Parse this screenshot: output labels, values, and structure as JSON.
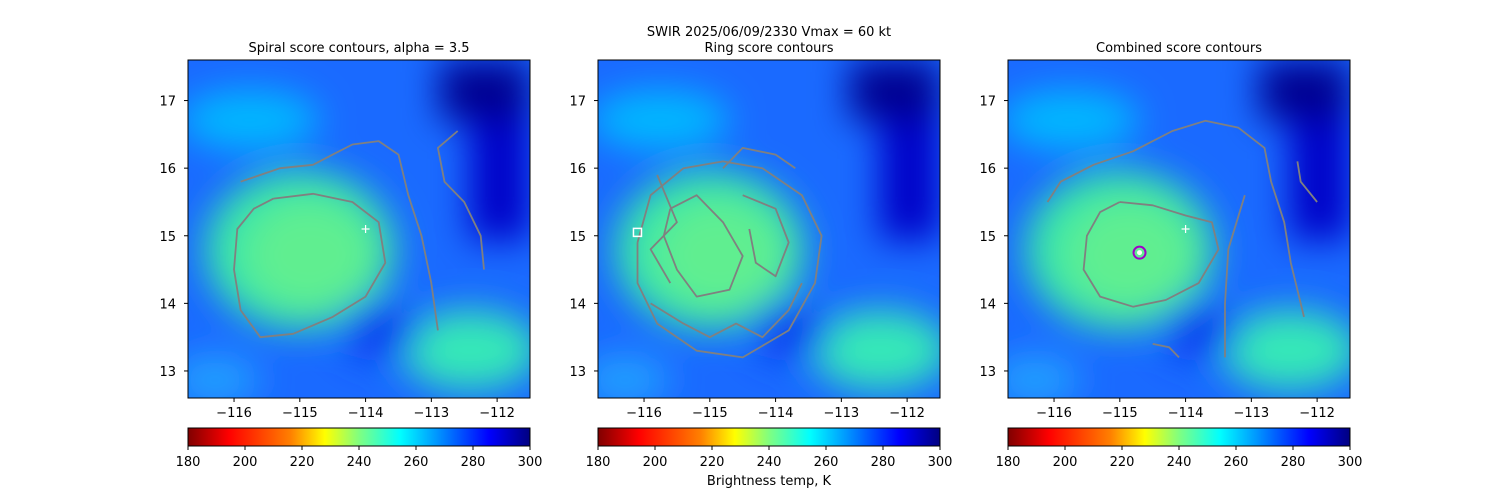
{
  "figure": {
    "suptitle_line1": "SWIR  2025/06/09/2330    Vmax = 60 kt",
    "colorbar_label": "Brightness temp, K",
    "colormap": [
      "#800000",
      "#ff0000",
      "#ff8000",
      "#ffff00",
      "#80ff80",
      "#00ffff",
      "#0080ff",
      "#0000ff",
      "#000080"
    ],
    "contour_color": "#808080",
    "marker_color": "#ffffff",
    "center_marker_color": "#a000c8"
  },
  "chart_data": [
    {
      "type": "heatmap",
      "title": "Spiral score contours, alpha =  3.5",
      "xlim": [
        -116.7,
        -111.5
      ],
      "ylim": [
        12.6,
        17.6
      ],
      "xticks": [
        -116,
        -115,
        -114,
        -113,
        -112
      ],
      "xtick_labels": [
        "−116",
        "−115",
        "−114",
        "−113",
        "−112"
      ],
      "yticks": [
        13,
        14,
        15,
        16,
        17
      ],
      "ytick_labels": [
        "13",
        "14",
        "15",
        "16",
        "17"
      ],
      "colorbar": {
        "range": [
          180,
          300
        ],
        "ticks": [
          "180",
          "200",
          "220",
          "240",
          "260",
          "280",
          "300"
        ]
      },
      "markers": [
        {
          "kind": "plus",
          "lon": -114.0,
          "lat": 15.1
        }
      ],
      "contours": [
        [
          [
            -115.4,
            15.55
          ],
          [
            -114.8,
            15.62
          ],
          [
            -114.2,
            15.5
          ],
          [
            -113.8,
            15.2
          ],
          [
            -113.7,
            14.6
          ],
          [
            -114.0,
            14.1
          ],
          [
            -114.5,
            13.8
          ],
          [
            -115.1,
            13.55
          ],
          [
            -115.6,
            13.5
          ],
          [
            -115.9,
            13.9
          ],
          [
            -116.0,
            14.5
          ],
          [
            -115.95,
            15.1
          ],
          [
            -115.7,
            15.4
          ],
          [
            -115.4,
            15.55
          ]
        ],
        [
          [
            -115.9,
            15.8
          ],
          [
            -115.3,
            16.0
          ],
          [
            -114.8,
            16.05
          ],
          [
            -114.5,
            16.2
          ],
          [
            -114.2,
            16.35
          ],
          [
            -113.8,
            16.4
          ],
          [
            -113.5,
            16.2
          ],
          [
            -113.35,
            15.6
          ],
          [
            -113.15,
            15.0
          ],
          [
            -113.0,
            14.3
          ],
          [
            -112.9,
            13.6
          ]
        ],
        [
          [
            -112.6,
            16.55
          ],
          [
            -112.9,
            16.3
          ],
          [
            -112.8,
            15.8
          ],
          [
            -112.5,
            15.5
          ],
          [
            -112.25,
            15.0
          ],
          [
            -112.2,
            14.5
          ]
        ]
      ]
    },
    {
      "type": "heatmap",
      "title": "Ring score contours",
      "xlim": [
        -116.7,
        -111.5
      ],
      "ylim": [
        12.6,
        17.6
      ],
      "xticks": [
        -116,
        -115,
        -114,
        -113,
        -112
      ],
      "xtick_labels": [
        "−116",
        "−115",
        "−114",
        "−113",
        "−112"
      ],
      "yticks": [
        13,
        14,
        15,
        16,
        17
      ],
      "ytick_labels": [
        "13",
        "14",
        "15",
        "16",
        "17"
      ],
      "colorbar": {
        "range": [
          180,
          300
        ],
        "ticks": [
          "180",
          "200",
          "220",
          "240",
          "260",
          "280",
          "300"
        ]
      },
      "markers": [
        {
          "kind": "square",
          "lon": -116.1,
          "lat": 15.05
        }
      ],
      "contours": [
        [
          [
            -116.1,
            14.9
          ],
          [
            -115.9,
            15.6
          ],
          [
            -115.4,
            16.0
          ],
          [
            -114.8,
            16.1
          ],
          [
            -114.2,
            16.0
          ],
          [
            -113.6,
            15.6
          ],
          [
            -113.3,
            15.0
          ],
          [
            -113.4,
            14.3
          ],
          [
            -113.8,
            13.6
          ],
          [
            -114.5,
            13.2
          ],
          [
            -115.2,
            13.3
          ],
          [
            -115.8,
            13.7
          ],
          [
            -116.1,
            14.3
          ],
          [
            -116.1,
            14.9
          ]
        ],
        [
          [
            -115.6,
            15.4
          ],
          [
            -115.2,
            15.6
          ],
          [
            -114.8,
            15.2
          ],
          [
            -114.5,
            14.7
          ],
          [
            -114.7,
            14.2
          ],
          [
            -115.2,
            14.1
          ],
          [
            -115.5,
            14.5
          ],
          [
            -115.7,
            15.0
          ],
          [
            -115.6,
            15.4
          ]
        ],
        [
          [
            -114.5,
            15.6
          ],
          [
            -114.0,
            15.4
          ],
          [
            -113.8,
            14.9
          ],
          [
            -114.0,
            14.4
          ],
          [
            -114.3,
            14.6
          ],
          [
            -114.4,
            15.1
          ]
        ],
        [
          [
            -115.9,
            14.0
          ],
          [
            -115.4,
            13.7
          ],
          [
            -115.0,
            13.5
          ],
          [
            -114.6,
            13.7
          ],
          [
            -114.2,
            13.5
          ],
          [
            -113.8,
            13.9
          ],
          [
            -113.6,
            14.3
          ]
        ],
        [
          [
            -114.8,
            16.0
          ],
          [
            -114.5,
            16.3
          ],
          [
            -114.0,
            16.2
          ],
          [
            -113.7,
            16.0
          ]
        ],
        [
          [
            -115.8,
            15.9
          ],
          [
            -115.5,
            15.2
          ],
          [
            -115.9,
            14.8
          ],
          [
            -115.6,
            14.3
          ]
        ]
      ]
    },
    {
      "type": "heatmap",
      "title": "Combined score contours",
      "xlim": [
        -116.7,
        -111.5
      ],
      "ylim": [
        12.6,
        17.6
      ],
      "xticks": [
        -116,
        -115,
        -114,
        -113,
        -112
      ],
      "xtick_labels": [
        "−116",
        "−115",
        "−114",
        "−113",
        "−112"
      ],
      "yticks": [
        13,
        14,
        15,
        16,
        17
      ],
      "ytick_labels": [
        "13",
        "14",
        "15",
        "16",
        "17"
      ],
      "colorbar": {
        "range": [
          180,
          300
        ],
        "ticks": [
          "180",
          "200",
          "220",
          "240",
          "260",
          "280",
          "300"
        ]
      },
      "markers": [
        {
          "kind": "plus",
          "lon": -114.0,
          "lat": 15.1
        },
        {
          "kind": "circle",
          "lon": -114.7,
          "lat": 14.75
        }
      ],
      "contours": [
        [
          [
            -115.0,
            15.5
          ],
          [
            -114.5,
            15.45
          ],
          [
            -114.0,
            15.3
          ],
          [
            -113.6,
            15.2
          ],
          [
            -113.5,
            14.8
          ],
          [
            -113.8,
            14.3
          ],
          [
            -114.3,
            14.05
          ],
          [
            -114.8,
            13.95
          ],
          [
            -115.3,
            14.1
          ],
          [
            -115.55,
            14.5
          ],
          [
            -115.5,
            15.0
          ],
          [
            -115.3,
            15.35
          ],
          [
            -115.0,
            15.5
          ]
        ],
        [
          [
            -116.1,
            15.5
          ],
          [
            -115.9,
            15.8
          ],
          [
            -115.4,
            16.05
          ],
          [
            -114.8,
            16.25
          ],
          [
            -114.2,
            16.55
          ],
          [
            -113.7,
            16.7
          ],
          [
            -113.2,
            16.6
          ],
          [
            -112.8,
            16.3
          ],
          [
            -112.7,
            15.8
          ],
          [
            -112.5,
            15.2
          ],
          [
            -112.4,
            14.6
          ],
          [
            -112.2,
            13.8
          ]
        ],
        [
          [
            -113.1,
            15.6
          ],
          [
            -113.35,
            14.8
          ],
          [
            -113.4,
            14.0
          ],
          [
            -113.4,
            13.2
          ]
        ],
        [
          [
            -114.5,
            13.4
          ],
          [
            -114.25,
            13.35
          ],
          [
            -114.1,
            13.2
          ]
        ],
        [
          [
            -112.3,
            16.1
          ],
          [
            -112.25,
            15.8
          ],
          [
            -112.0,
            15.5
          ]
        ]
      ]
    }
  ]
}
